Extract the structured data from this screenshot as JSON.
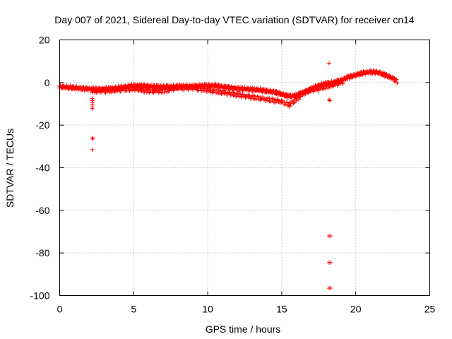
{
  "chart_data": {
    "type": "scatter",
    "title": "Day 007 of 2021, Sidereal Day-to-day VTEC variation (SDTVAR) for receiver cn14",
    "xlabel": "GPS time / hours",
    "ylabel": "SDTVAR / TECUs",
    "xlim": [
      0,
      25
    ],
    "ylim": [
      -100,
      20
    ],
    "xticks": [
      0,
      5,
      10,
      15,
      20,
      25
    ],
    "yticks": [
      -100,
      -80,
      -60,
      -40,
      -20,
      0,
      20
    ],
    "grid": true,
    "marker": "+",
    "color": "#ff0000",
    "main_trend": [
      [
        0.0,
        -2.0
      ],
      [
        0.5,
        -2.2
      ],
      [
        1.0,
        -2.5
      ],
      [
        1.5,
        -2.8
      ],
      [
        2.0,
        -3.0
      ],
      [
        2.5,
        -3.2
      ],
      [
        3.0,
        -3.0
      ],
      [
        3.5,
        -2.8
      ],
      [
        4.0,
        -2.5
      ],
      [
        4.5,
        -2.0
      ],
      [
        5.0,
        -1.5
      ],
      [
        5.5,
        -1.5
      ],
      [
        6.0,
        -1.8
      ],
      [
        6.5,
        -2.0
      ],
      [
        7.0,
        -2.0
      ],
      [
        7.5,
        -2.0
      ],
      [
        8.0,
        -1.8
      ],
      [
        8.5,
        -1.8
      ],
      [
        9.0,
        -1.8
      ],
      [
        9.5,
        -1.5
      ],
      [
        10.0,
        -1.5
      ],
      [
        10.5,
        -1.5
      ],
      [
        11.0,
        -2.0
      ],
      [
        11.5,
        -2.5
      ],
      [
        12.0,
        -2.8
      ],
      [
        12.5,
        -3.0
      ],
      [
        13.0,
        -3.2
      ],
      [
        13.5,
        -3.5
      ],
      [
        14.0,
        -4.0
      ],
      [
        14.5,
        -4.5
      ],
      [
        15.0,
        -5.5
      ],
      [
        15.5,
        -6.5
      ],
      [
        16.0,
        -6.0
      ],
      [
        16.5,
        -4.5
      ],
      [
        17.0,
        -3.0
      ],
      [
        17.5,
        -1.5
      ],
      [
        18.0,
        -0.5
      ],
      [
        18.5,
        0.0
      ],
      [
        19.0,
        1.0
      ],
      [
        19.5,
        2.5
      ],
      [
        20.0,
        3.5
      ],
      [
        20.5,
        4.5
      ],
      [
        21.0,
        5.0
      ],
      [
        21.5,
        4.8
      ],
      [
        22.0,
        3.5
      ],
      [
        22.5,
        2.0
      ],
      [
        22.8,
        0.5
      ]
    ],
    "secondary_trend": [
      [
        2.2,
        -4.0
      ],
      [
        3.0,
        -4.0
      ],
      [
        4.0,
        -3.5
      ],
      [
        5.0,
        -3.0
      ],
      [
        6.0,
        -4.0
      ],
      [
        7.0,
        -4.0
      ],
      [
        8.0,
        -2.5
      ],
      [
        9.0,
        -2.5
      ],
      [
        15.0,
        -9.0
      ],
      [
        15.5,
        -10.5
      ],
      [
        16.0,
        -8.0
      ],
      [
        16.5,
        -5.0
      ],
      [
        17.0,
        -3.5
      ],
      [
        17.5,
        -3.0
      ],
      [
        18.0,
        -2.0
      ],
      [
        18.8,
        -0.5
      ],
      [
        19.2,
        0.5
      ]
    ],
    "outliers": [
      [
        2.2,
        -7.5
      ],
      [
        2.2,
        -8.5
      ],
      [
        2.2,
        -9.5
      ],
      [
        2.2,
        -10.5
      ],
      [
        2.2,
        -11.5
      ],
      [
        2.2,
        -12.2
      ],
      [
        2.25,
        -26.0
      ],
      [
        2.2,
        -26.5
      ],
      [
        2.2,
        -31.5
      ],
      [
        10.2,
        -3.5
      ],
      [
        10.2,
        -4.5
      ],
      [
        18.2,
        9.0
      ],
      [
        18.2,
        -8.0
      ],
      [
        18.25,
        -8.5
      ],
      [
        18.2,
        -72.0
      ],
      [
        18.3,
        -72.0
      ],
      [
        18.2,
        -84.5
      ],
      [
        18.3,
        -84.5
      ],
      [
        18.2,
        -96.5
      ],
      [
        18.3,
        -96.5
      ]
    ]
  }
}
